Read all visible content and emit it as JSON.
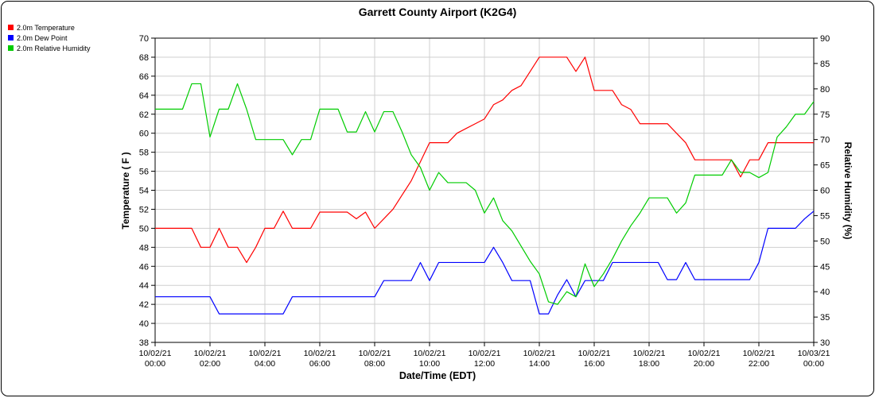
{
  "page": {
    "title": "Garrett County Airport (K2G4)"
  },
  "legend": [
    {
      "label": "2.0m Temperature",
      "color": "#ff0000"
    },
    {
      "label": "2.0m Dew Point",
      "color": "#0000ff"
    },
    {
      "label": "2.0m Relative Humidity",
      "color": "#00cc00"
    }
  ],
  "chart_data": {
    "type": "line",
    "title": "Garrett County Airport (K2G4)",
    "xlabel": "Date/Time (EDT)",
    "ylabel_left": "Temperature ( F )",
    "ylabel_right": "Relative Humidity (%)",
    "ylim_left": [
      38,
      70
    ],
    "ylim_right": [
      30,
      90
    ],
    "yticks_left": [
      70,
      68,
      66,
      64,
      62,
      60,
      58,
      56,
      54,
      52,
      50,
      48,
      46,
      44,
      42,
      40,
      38
    ],
    "yticks_right": [
      90,
      85,
      80,
      75,
      70,
      65,
      60,
      55,
      50,
      45,
      40,
      35,
      30
    ],
    "x_span_hours": 24,
    "x_step_minutes": 20,
    "grid": true,
    "legend_position": "top-left",
    "grid_color": "#cfcfcf",
    "xticks": [
      {
        "hour": 0,
        "date": "10/02/21",
        "time": "00:00"
      },
      {
        "hour": 2,
        "date": "10/02/21",
        "time": "02:00"
      },
      {
        "hour": 4,
        "date": "10/02/21",
        "time": "04:00"
      },
      {
        "hour": 6,
        "date": "10/02/21",
        "time": "06:00"
      },
      {
        "hour": 8,
        "date": "10/02/21",
        "time": "08:00"
      },
      {
        "hour": 10,
        "date": "10/02/21",
        "time": "10:00"
      },
      {
        "hour": 12,
        "date": "10/02/21",
        "time": "12:00"
      },
      {
        "hour": 14,
        "date": "10/02/21",
        "time": "14:00"
      },
      {
        "hour": 16,
        "date": "10/02/21",
        "time": "16:00"
      },
      {
        "hour": 18,
        "date": "10/02/21",
        "time": "18:00"
      },
      {
        "hour": 20,
        "date": "10/02/21",
        "time": "20:00"
      },
      {
        "hour": 22,
        "date": "10/02/21",
        "time": "22:00"
      },
      {
        "hour": 24,
        "date": "10/03/21",
        "time": "00:00"
      }
    ],
    "series": [
      {
        "name": "2.0m Temperature",
        "axis": "left",
        "color": "#ff0000",
        "values": [
          50,
          50,
          50,
          50,
          50,
          48,
          48,
          50,
          48,
          48,
          46.4,
          48,
          50,
          50,
          51.8,
          50,
          50,
          50,
          51.7,
          51.7,
          51.7,
          51.7,
          51,
          51.7,
          50,
          51,
          52,
          53.5,
          55,
          57,
          59,
          59,
          59,
          60,
          60.5,
          61,
          61.5,
          63,
          63.5,
          64.5,
          65,
          66.5,
          68,
          68,
          68,
          68,
          66.5,
          68,
          64.5,
          64.5,
          64.5,
          63,
          62.5,
          61,
          61,
          61,
          61,
          60,
          59,
          57.2,
          57.2,
          57.2,
          57.2,
          57.2,
          55.4,
          57.2,
          57.2,
          59,
          59,
          59,
          59,
          59,
          59
        ]
      },
      {
        "name": "2.0m Dew Point",
        "axis": "left",
        "color": "#0000ff",
        "values": [
          42.8,
          42.8,
          42.8,
          42.8,
          42.8,
          42.8,
          42.8,
          41,
          41,
          41,
          41,
          41,
          41,
          41,
          41,
          42.8,
          42.8,
          42.8,
          42.8,
          42.8,
          42.8,
          42.8,
          42.8,
          42.8,
          42.8,
          44.5,
          44.5,
          44.5,
          44.5,
          46.4,
          44.5,
          46.4,
          46.4,
          46.4,
          46.4,
          46.4,
          46.4,
          48,
          46.4,
          44.5,
          44.5,
          44.5,
          41,
          41,
          43,
          44.6,
          42.8,
          44.5,
          44.5,
          44.5,
          46.4,
          46.4,
          46.4,
          46.4,
          46.4,
          46.4,
          44.6,
          44.6,
          46.4,
          44.6,
          44.6,
          44.6,
          44.6,
          44.6,
          44.6,
          44.6,
          46.4,
          50,
          50,
          50,
          50,
          51,
          51.8
        ]
      },
      {
        "name": "2.0m Relative Humidity",
        "axis": "right",
        "color": "#00cc00",
        "values": [
          76,
          76,
          76,
          76,
          81,
          81,
          70.5,
          76,
          76,
          81,
          76,
          70,
          70,
          70,
          70,
          67,
          70,
          70,
          76,
          76,
          76,
          71.5,
          71.5,
          75.5,
          71.5,
          75.5,
          75.5,
          71.5,
          67,
          64.5,
          60,
          63.5,
          61.5,
          61.5,
          61.5,
          60,
          55.5,
          58.5,
          54,
          52,
          49,
          46,
          43.5,
          38,
          37.5,
          40,
          39,
          45.5,
          41,
          43.5,
          46.5,
          50,
          53,
          55.5,
          58.5,
          58.5,
          58.5,
          55.5,
          57.5,
          63,
          63,
          63,
          63,
          66,
          63.5,
          63.5,
          62.5,
          63.5,
          70.5,
          72.5,
          75,
          75,
          77.5
        ]
      }
    ]
  }
}
